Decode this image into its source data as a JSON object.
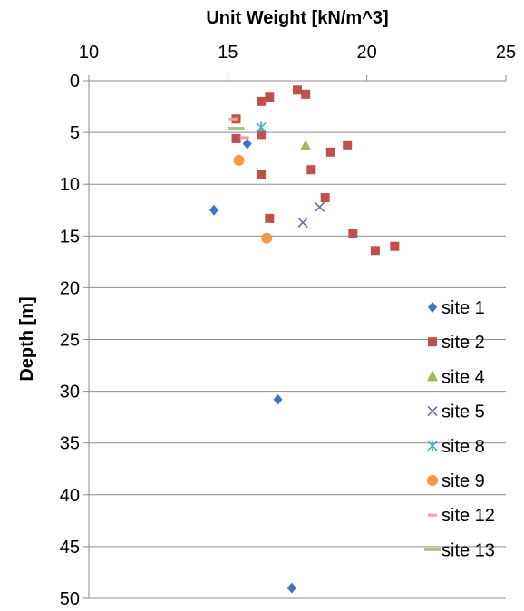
{
  "chart_data": {
    "type": "scatter",
    "title": "",
    "xlabel": "Unit Weight [kN/m^3]",
    "ylabel": "Depth [m]",
    "xlim": [
      10,
      25
    ],
    "ylim": [
      0,
      50
    ],
    "y_inverted": true,
    "x_axis_position": "top",
    "x_ticks": [
      10,
      15,
      20,
      25
    ],
    "y_ticks": [
      0,
      5,
      10,
      15,
      20,
      25,
      30,
      35,
      40,
      45,
      50
    ],
    "grid": "horizontal",
    "legend_position": "right-bottom",
    "series": [
      {
        "name": "site 1",
        "marker": "diamond",
        "color": "#4472C4",
        "points": [
          [
            14.5,
            12.5
          ],
          [
            15.7,
            6.1
          ],
          [
            16.8,
            30.8
          ],
          [
            17.3,
            49.0
          ]
        ]
      },
      {
        "name": "site 2",
        "marker": "square",
        "color": "#C0504D",
        "points": [
          [
            17.5,
            0.9
          ],
          [
            17.8,
            1.3
          ],
          [
            16.5,
            1.6
          ],
          [
            16.2,
            2.0
          ],
          [
            15.3,
            3.7
          ],
          [
            16.2,
            5.2
          ],
          [
            15.3,
            5.6
          ],
          [
            19.3,
            6.2
          ],
          [
            18.7,
            6.9
          ],
          [
            18.0,
            8.6
          ],
          [
            16.2,
            9.1
          ],
          [
            18.5,
            11.3
          ],
          [
            16.5,
            13.3
          ],
          [
            19.5,
            14.8
          ],
          [
            21.0,
            16.0
          ],
          [
            20.3,
            16.4
          ]
        ]
      },
      {
        "name": "site 4",
        "marker": "triangle",
        "color": "#9BBB59",
        "points": [
          [
            17.8,
            6.3
          ]
        ]
      },
      {
        "name": "site 5",
        "marker": "x",
        "color": "#8064A2",
        "points": [
          [
            18.3,
            12.2
          ],
          [
            17.7,
            13.7
          ]
        ]
      },
      {
        "name": "site 8",
        "marker": "star",
        "color": "#4BACC6",
        "points": [
          [
            16.2,
            4.5
          ]
        ]
      },
      {
        "name": "site 9",
        "marker": "circle",
        "color": "#F79646",
        "points": [
          [
            15.4,
            7.7
          ],
          [
            16.4,
            15.2
          ]
        ]
      },
      {
        "name": "site 12",
        "marker": "dash",
        "color": "#F2A0A0",
        "points": [
          [
            15.2,
            3.7
          ],
          [
            15.6,
            5.5
          ]
        ]
      },
      {
        "name": "site 13",
        "marker": "long-dash",
        "color": "#A9C47F",
        "points": [
          [
            15.3,
            4.6
          ]
        ]
      }
    ]
  }
}
